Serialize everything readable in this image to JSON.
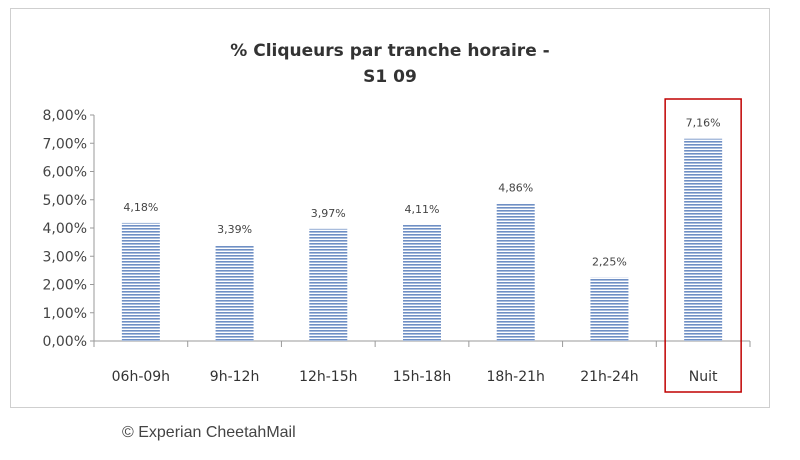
{
  "chart_data": {
    "type": "bar",
    "title": [
      "% Cliqueurs par tranche horaire -",
      "S1 09"
    ],
    "categories": [
      "06h-09h",
      "9h-12h",
      "12h-15h",
      "15h-18h",
      "18h-21h",
      "21h-24h",
      "Nuit"
    ],
    "values": [
      4.18,
      3.39,
      3.97,
      4.11,
      4.86,
      2.25,
      7.16
    ],
    "data_labels": [
      "4,18%",
      "3,39%",
      "3,97%",
      "4,11%",
      "4,86%",
      "2,25%",
      "7,16%"
    ],
    "y_ticks": [
      "0,00%",
      "1,00%",
      "2,00%",
      "3,00%",
      "4,00%",
      "5,00%",
      "6,00%",
      "7,00%",
      "8,00%"
    ],
    "ylim": [
      0,
      8
    ],
    "highlighted_category": "Nuit",
    "colors": {
      "bar": "#6f8fc4",
      "bar_stripe": "#ffffff",
      "highlight": "#c00000"
    },
    "grid": false,
    "legend": "none"
  },
  "footer": {
    "credit": "© Experian CheetahMail"
  }
}
